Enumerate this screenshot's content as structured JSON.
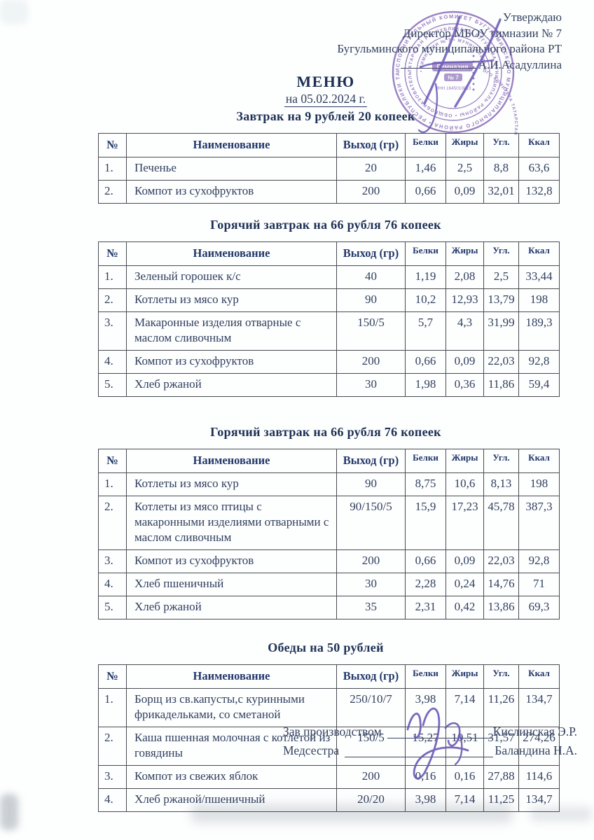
{
  "colors": {
    "title_navy": "#1c2e56",
    "body_text": "#31405f",
    "table_border": "#494b50",
    "stamp_purple": "#8565b5",
    "signature_ink": "#6a58b5"
  },
  "approval": {
    "line1": "Утверждаю",
    "line2": "Директор МБОУ гимназии № 7",
    "line3": "Бугульминского муниципального района РТ",
    "line4": "А.И.Асадуллина"
  },
  "stamp": {
    "ring_outer": "ИСПОЛНИТЕЛЬНЫЙ КОМИТЕТ БУГУЛЬМИНСКОГО МУНИЦИПАЛЬНОГО РАЙОНА • РЕСПУБЛИКИ ТАТАРСТАН •",
    "ring_middle": "ТАТАРСТАН РЕСПУБЛИКАСЫ БУГУЛЬМА МУНИЦИПАЛЬ РАЙОНЫ • ОБЩЕОБРАЗОВАТЕЛЬНОГО •",
    "ring_inner": "• ГИМНАЗИИ № 7 • МУНИЦИПАЛЬНОГО КОМИТЕТА ТАТАРСТАН",
    "center_line1": "Гимназия",
    "center_line2": "№ 7",
    "inn": "ИНН 1645010813"
  },
  "title": "МЕНЮ",
  "date_line": "на 05.02.2024 г.",
  "tables": [
    {
      "title": "Завтрак на 9 рублей 20 копеек",
      "headers": [
        "№",
        "Наименование",
        "Выход (гр)",
        "Белки",
        "Жиры",
        "Угл.",
        "Ккал"
      ],
      "rows": [
        [
          "1.",
          "Печенье",
          "20",
          "1,46",
          "2,5",
          "8,8",
          "63,6"
        ],
        [
          "2.",
          "Компот из сухофруктов",
          "200",
          "0,66",
          "0,09",
          "32,01",
          "132,8"
        ]
      ]
    },
    {
      "title": "Горячий завтрак на 66 рубля 76 копеек",
      "headers": [
        "№",
        "Наименование",
        "Выход (гр)",
        "Белки",
        "Жиры",
        "Угл.",
        "Ккал"
      ],
      "rows": [
        [
          "1.",
          "Зеленый горошек к/с",
          "40",
          "1,19",
          "2,08",
          "2,5",
          "33,44"
        ],
        [
          "2.",
          "Котлеты из мясо кур",
          "90",
          "10,2",
          "12,93",
          "13,79",
          "198"
        ],
        [
          "3.",
          "Макаронные изделия отварные с маслом сливочным",
          "150/5",
          "5,7",
          "4,3",
          "31,99",
          "189,3"
        ],
        [
          "4.",
          "Компот из сухофруктов",
          "200",
          "0,66",
          "0,09",
          "22,03",
          "92,8"
        ],
        [
          "5.",
          "Хлеб ржаной",
          "30",
          "1,98",
          "0,36",
          "11,86",
          "59,4"
        ]
      ]
    },
    {
      "title": "Горячий завтрак на 66 рубля 76 копеек",
      "headers": [
        "№",
        "Наименование",
        "Выход (гр)",
        "Белки",
        "Жиры",
        "Угл.",
        "Ккал"
      ],
      "rows": [
        [
          "1.",
          "Котлеты из мясо кур",
          "90",
          "8,75",
          "10,6",
          "8,13",
          "198"
        ],
        [
          "2.",
          "Котлеты из мясо птицы с макаронными изделиями отварными с маслом сливочным",
          "90/150/5",
          "15,9",
          "17,23",
          "45,78",
          "387,3"
        ],
        [
          "3.",
          "Компот из сухофруктов",
          "200",
          "0,66",
          "0,09",
          "22,03",
          "92,8"
        ],
        [
          "4.",
          "Хлеб пшеничный",
          "30",
          "2,28",
          "0,24",
          "14,76",
          "71"
        ],
        [
          "5.",
          "Хлеб ржаной",
          "35",
          "2,31",
          "0,42",
          "13,86",
          "69,3"
        ]
      ]
    },
    {
      "title": "Обеды на 50 рублей",
      "headers": [
        "№",
        "Наименование",
        "Выход (гр)",
        "Белки",
        "Жиры",
        "Угл.",
        "Ккал"
      ],
      "rows": [
        [
          "1.",
          "Борщ из св.капусты,с куринными фрикадельками, со сметаной",
          "250/10/7",
          "3,98",
          "7,14",
          "11,26",
          "134,7"
        ],
        [
          "2.",
          "Каша пшенная молочная с котлетой из говядины",
          "150/5",
          "15,27",
          "10,51",
          "31,57",
          "274,26"
        ],
        [
          "3.",
          "Компот из свежих яблок",
          "200",
          "0,16",
          "0,16",
          "27,88",
          "114,6"
        ],
        [
          "4.",
          "Хлеб ржаной/пшеничный",
          "20/20",
          "3,98",
          "7,14",
          "11,25",
          "134,7"
        ]
      ]
    }
  ],
  "signatures": [
    {
      "role": "Зав производством",
      "name": "Кислинская Э.Р."
    },
    {
      "role": "Медсестра",
      "name": "Баландина Н.А."
    }
  ]
}
